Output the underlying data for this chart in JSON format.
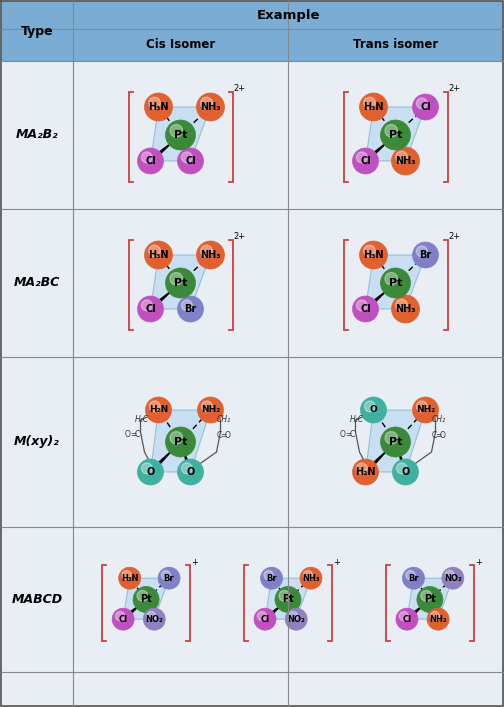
{
  "header_bg": "#7badd4",
  "row_bg": "#dde8f0",
  "cell_bg": "#e8eef4",
  "table_line_color": "#777777",
  "bracket_color": "#d04040",
  "fig_bg": "#c8c8c8",
  "colors": {
    "Pt": "#3a8a3a",
    "NH3": "#e06030",
    "H3N": "#e06030",
    "Cl": "#c050c0",
    "Br": "#8080c8",
    "O": "#40b0a0",
    "H2N": "#e06030",
    "NH2": "#e06030",
    "NO2": "#9080c0"
  },
  "row_labels": [
    "MA₂B₂",
    "MA₂BC",
    "M(xy)₂",
    "MABCD"
  ],
  "col_labels": [
    "Cis Isomer",
    "Trans isomer"
  ],
  "header_label": "Example",
  "type_label": "Type"
}
